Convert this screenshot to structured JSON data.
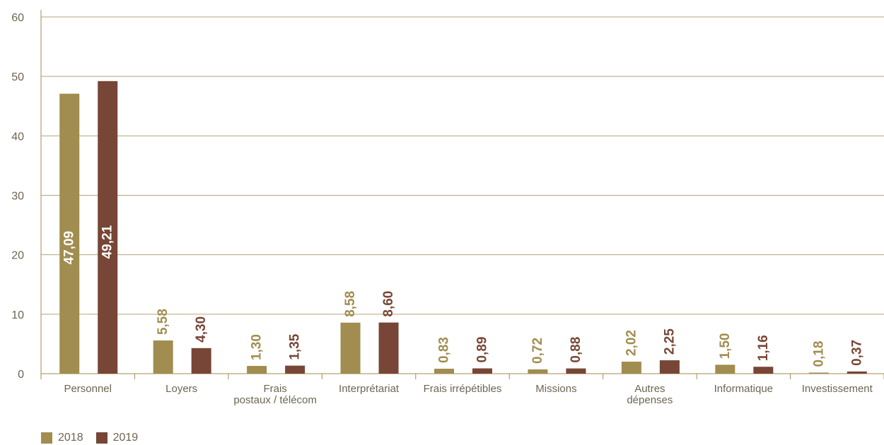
{
  "chart_data": {
    "type": "bar",
    "categories": [
      [
        "Personnel"
      ],
      [
        "Loyers"
      ],
      [
        "Frais",
        "postaux / télécom"
      ],
      [
        "Interprétariat"
      ],
      [
        "Frais irrépétibles"
      ],
      [
        "Missions"
      ],
      [
        "Autres",
        "dépenses"
      ],
      [
        "Informatique"
      ],
      [
        "Investissement"
      ]
    ],
    "series": [
      {
        "name": "2018",
        "color": "#a08d4f",
        "values": [
          47.09,
          5.58,
          1.3,
          8.58,
          0.83,
          0.72,
          2.02,
          1.5,
          0.18
        ],
        "labels": [
          "47,09",
          "5,58",
          "1,30",
          "8,58",
          "0,83",
          "0,72",
          "2,02",
          "1,50",
          "0,18"
        ]
      },
      {
        "name": "2019",
        "color": "#774636",
        "values": [
          49.21,
          4.3,
          1.35,
          8.6,
          0.89,
          0.88,
          2.25,
          1.16,
          0.37
        ],
        "labels": [
          "49,21",
          "4,30",
          "1,35",
          "8,60",
          "0,89",
          "0,88",
          "2,25",
          "1,16",
          "0,37"
        ]
      }
    ],
    "ylim": [
      0,
      60
    ],
    "yticks": [
      "0",
      "10",
      "20",
      "30",
      "40",
      "50",
      "60"
    ],
    "grid": true,
    "legend_position": "bottom-left"
  }
}
